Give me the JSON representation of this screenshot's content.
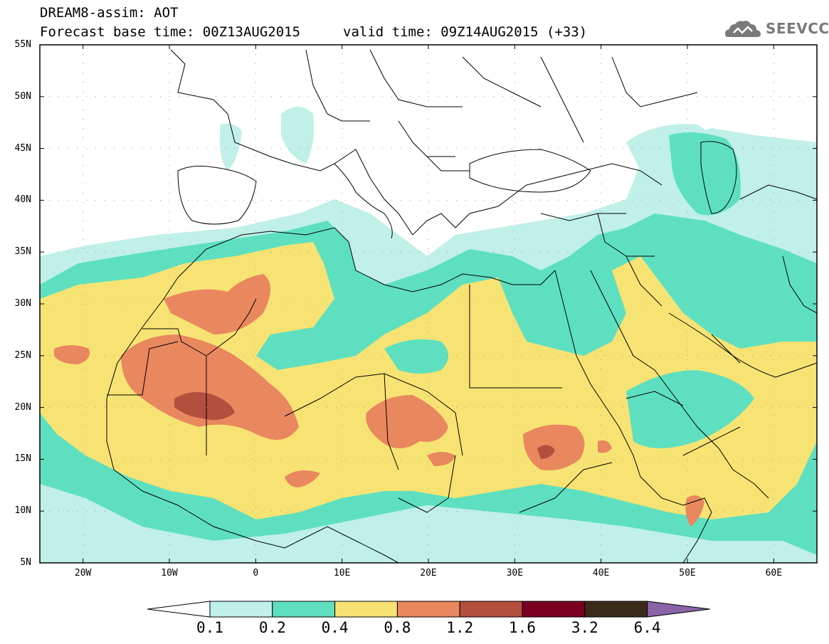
{
  "header": {
    "title": "DREAM8-assim: AOT",
    "base_time": "Forecast base time: 00Z13AUG2015",
    "valid_time": "valid time: 09Z14AUG2015 (+33)",
    "logo_text": "SEEVCCC"
  },
  "map": {
    "projection": "lat-lon",
    "lon_range": [
      -25,
      65
    ],
    "lat_range": [
      5,
      55
    ],
    "lat_labels": [
      "55N",
      "50N",
      "45N",
      "40N",
      "35N",
      "30N",
      "25N",
      "20N",
      "15N",
      "10N",
      "5N"
    ],
    "lon_labels": [
      "20W",
      "10W",
      "0",
      "10E",
      "20E",
      "30E",
      "40E",
      "50E",
      "60E"
    ],
    "background": "#ffffff"
  },
  "colorbar": {
    "thresholds": [
      "0.1",
      "0.2",
      "0.4",
      "0.8",
      "1.2",
      "1.6",
      "3.2",
      "6.4"
    ],
    "colors": [
      "#c0f0e8",
      "#5ee0c0",
      "#f7e373",
      "#e9875f",
      "#b24f3d",
      "#7a0022",
      "#3d2b1a",
      "#8a64a6"
    ],
    "under_color": "#ffffff",
    "over_color": "#8a64a6"
  }
}
